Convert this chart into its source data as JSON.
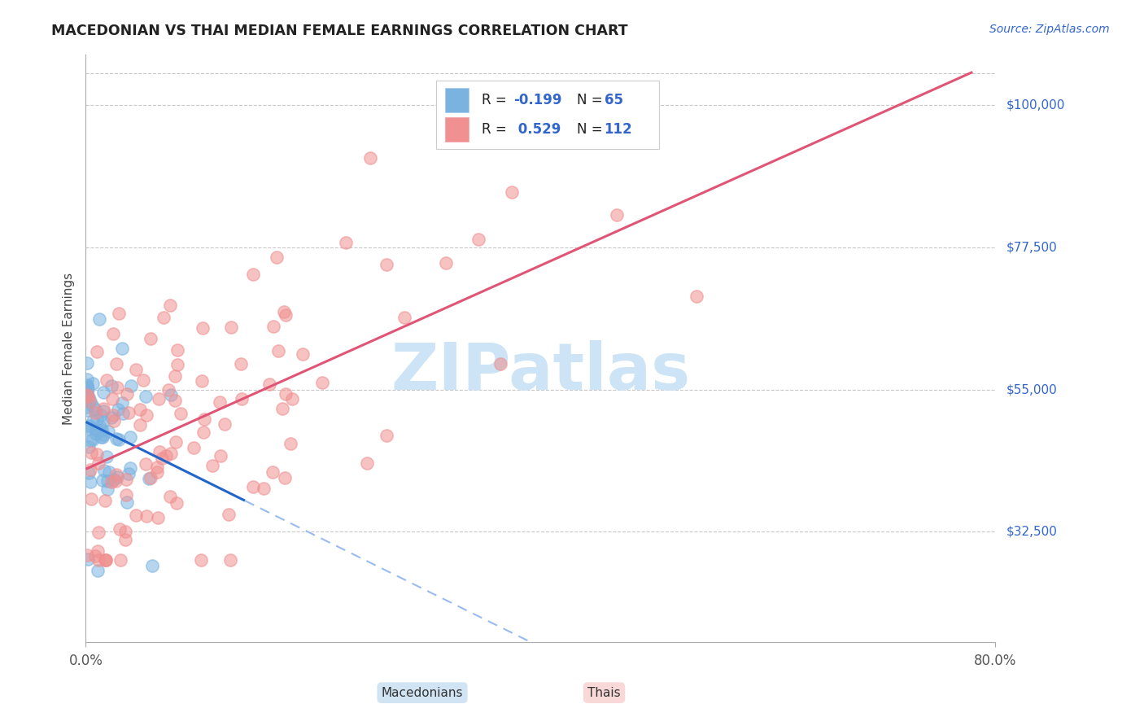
{
  "title": "MACEDONIAN VS THAI MEDIAN FEMALE EARNINGS CORRELATION CHART",
  "source_text": "Source: ZipAtlas.com",
  "ylabel": "Median Female Earnings",
  "x_min": 0.0,
  "x_max": 0.8,
  "y_min": 15000,
  "y_max": 108000,
  "ytick_values": [
    32500,
    55000,
    77500,
    100000
  ],
  "ytick_labels": [
    "$32,500",
    "$55,000",
    "$77,500",
    "$100,000"
  ],
  "macedonian_R": -0.199,
  "macedonian_N": 65,
  "thai_R": 0.529,
  "thai_N": 112,
  "macedonian_scatter_color": "#7ab3e0",
  "thai_scatter_color": "#f09090",
  "macedonian_line_color": "#2266cc",
  "thai_line_color": "#e05575",
  "mac_dash_color": "#99bbee",
  "background_color": "#ffffff",
  "grid_color": "#bbbbbb",
  "watermark_text": "ZIPatlas",
  "watermark_color": "#cce4f5",
  "title_color": "#222222",
  "axis_label_color": "#444444",
  "ytick_color": "#3366cc",
  "legend_r_color": "#3366cc",
  "source_color": "#3366cc",
  "legend_box_color": "#eeeeee",
  "mac_seed": 17,
  "thai_seed": 99
}
